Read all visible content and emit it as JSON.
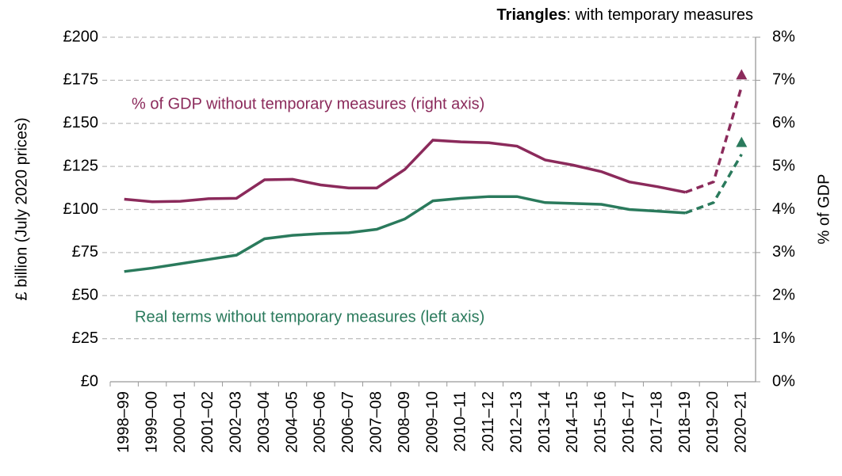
{
  "chart_data": {
    "type": "line",
    "annotation_bold": "Triangles",
    "annotation": ": with temporary measures",
    "ylabel": "£ billion (July 2020 prices)",
    "y2label": "% of GDP",
    "categories": [
      "1998–99",
      "1999–00",
      "2000–01",
      "2001–02",
      "2002–03",
      "2003–04",
      "2004–05",
      "2005–06",
      "2006–07",
      "2007–08",
      "2008–09",
      "2009–10",
      "2010–11",
      "2011–12",
      "2012–13",
      "2013–14",
      "2014–15",
      "2015–16",
      "2016–17",
      "2017–18",
      "2018–19",
      "2019–20",
      "2020–21"
    ],
    "dashed_from": "2018–19",
    "series": [
      {
        "name": "% of GDP without temporary measures (right axis)",
        "color": "#8b2a5b",
        "axis": "y2",
        "values": [
          4.24,
          4.18,
          4.19,
          4.25,
          4.26,
          4.69,
          4.7,
          4.57,
          4.5,
          4.5,
          4.93,
          5.61,
          5.57,
          5.55,
          5.47,
          5.15,
          5.03,
          4.88,
          4.64,
          4.53,
          4.4,
          4.64,
          6.85
        ],
        "triangle": 7.13
      },
      {
        "name": "Real terms without temporary measures (left axis)",
        "color": "#2a7a5c",
        "axis": "y",
        "values": [
          64,
          66,
          68.5,
          71,
          73.5,
          83,
          85,
          86,
          86.5,
          88.5,
          94.5,
          105,
          106.5,
          107.5,
          107.5,
          104,
          103.5,
          103,
          100,
          99,
          98,
          104,
          132
        ],
        "triangle": 139
      }
    ],
    "ylim": [
      0,
      200
    ],
    "yticks": [
      {
        "value": 0,
        "label": "£0"
      },
      {
        "value": 25,
        "label": "£25"
      },
      {
        "value": 50,
        "label": "£50"
      },
      {
        "value": 75,
        "label": "£75"
      },
      {
        "value": 100,
        "label": "£100"
      },
      {
        "value": 125,
        "label": "£125"
      },
      {
        "value": 150,
        "label": "£150"
      },
      {
        "value": 175,
        "label": "£175"
      },
      {
        "value": 200,
        "label": "£200"
      }
    ],
    "y2lim": [
      0,
      8
    ],
    "y2ticks": [
      {
        "value": 0,
        "label": "0%"
      },
      {
        "value": 1,
        "label": "1%"
      },
      {
        "value": 2,
        "label": "2%"
      },
      {
        "value": 3,
        "label": "3%"
      },
      {
        "value": 4,
        "label": "4%"
      },
      {
        "value": 5,
        "label": "5%"
      },
      {
        "value": 6,
        "label": "6%"
      },
      {
        "value": 7,
        "label": "7%"
      },
      {
        "value": 8,
        "label": "8%"
      }
    ],
    "grid": true
  }
}
